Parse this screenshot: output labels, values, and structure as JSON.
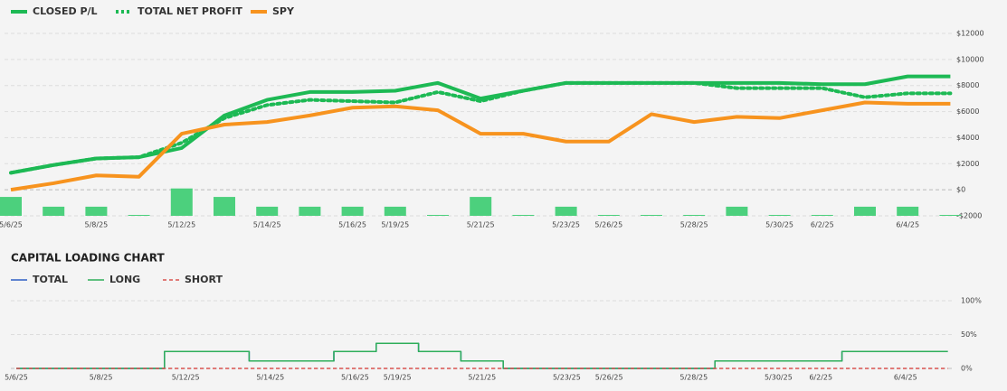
{
  "chart_data": [
    {
      "type": "line",
      "categories": [
        "5/6/25",
        null,
        "5/8/25",
        null,
        "5/12/25",
        null,
        "5/14/25",
        null,
        "5/16/25",
        "5/19/25",
        null,
        "5/21/25",
        null,
        "5/23/25",
        "5/26/25",
        null,
        "5/28/25",
        null,
        "5/30/25",
        "6/2/25",
        null,
        "6/4/25",
        null
      ],
      "series": [
        {
          "name": "CLOSED P/L",
          "color": "#1db954",
          "style": "solid",
          "values": [
            1300,
            1900,
            2400,
            2500,
            3200,
            5700,
            6900,
            7500,
            7500,
            7600,
            8200,
            7000,
            7600,
            8200,
            8200,
            8200,
            8200,
            8200,
            8200,
            8100,
            8100,
            8700,
            8700
          ]
        },
        {
          "name": "TOTAL NET PROFIT",
          "color": "#1db954",
          "style": "dotted",
          "values": [
            1300,
            1900,
            2400,
            2500,
            3600,
            5500,
            6500,
            6900,
            6800,
            6700,
            7500,
            6800,
            7600,
            8200,
            8200,
            8200,
            8200,
            7800,
            7800,
            7800,
            7100,
            7400,
            7400
          ]
        },
        {
          "name": "SPY",
          "color": "#f7931e",
          "style": "solid",
          "values": [
            0,
            500,
            1100,
            1000,
            4300,
            5000,
            5200,
            5700,
            6300,
            6400,
            6100,
            4300,
            4300,
            3700,
            3700,
            5800,
            5200,
            5600,
            5500,
            6100,
            6700,
            6600,
            6600
          ]
        }
      ],
      "bars": {
        "color": "#4cd07d",
        "values": [
          1450,
          700,
          700,
          70,
          2100,
          1450,
          700,
          700,
          700,
          700,
          70,
          1450,
          70,
          700,
          70,
          70,
          70,
          700,
          70,
          70,
          700,
          700,
          70
        ]
      },
      "ylim": [
        -2000,
        12000
      ],
      "yticks": [
        {
          "value": -2000,
          "label": "-$2000"
        },
        {
          "value": 0,
          "label": "$0"
        },
        {
          "value": 2000,
          "label": "$2000"
        },
        {
          "value": 4000,
          "label": "$4000"
        },
        {
          "value": 6000,
          "label": "$6000"
        },
        {
          "value": 8000,
          "label": "$8000"
        },
        {
          "value": 10000,
          "label": "$10000"
        },
        {
          "value": 12000,
          "label": "$12000"
        }
      ],
      "grid": true
    },
    {
      "type": "step",
      "title": "CAPITAL LOADING CHART",
      "categories": [
        "5/6/25",
        null,
        "5/8/25",
        null,
        "5/12/25",
        null,
        "5/14/25",
        null,
        "5/16/25",
        "5/19/25",
        null,
        "5/21/25",
        null,
        "5/23/25",
        "5/26/25",
        null,
        "5/28/25",
        null,
        "5/30/25",
        "6/2/25",
        null,
        "6/4/25",
        null
      ],
      "series": [
        {
          "name": "TOTAL",
          "color": "#2f5fc4",
          "style": "solid",
          "values": [
            0,
            0,
            0,
            0,
            25,
            25,
            11,
            11,
            25,
            37,
            25,
            11,
            0,
            0,
            0,
            0,
            0,
            11,
            11,
            11,
            25,
            25,
            25
          ]
        },
        {
          "name": "LONG",
          "color": "#2eae5a",
          "style": "solid",
          "values": [
            0,
            0,
            0,
            0,
            25,
            25,
            11,
            11,
            25,
            37,
            25,
            11,
            0,
            0,
            0,
            0,
            0,
            11,
            11,
            11,
            25,
            25,
            25
          ]
        },
        {
          "name": "SHORT",
          "color": "#d9534f",
          "style": "dashed",
          "values": [
            0,
            0,
            0,
            0,
            0,
            0,
            0,
            0,
            0,
            0,
            0,
            0,
            0,
            0,
            0,
            0,
            0,
            0,
            0,
            0,
            0,
            0,
            0
          ]
        }
      ],
      "ylim": [
        0,
        100
      ],
      "yticks": [
        {
          "value": 0,
          "label": "0%"
        },
        {
          "value": 50,
          "label": "50%"
        },
        {
          "value": 100,
          "label": "100%"
        }
      ],
      "grid": true
    }
  ]
}
